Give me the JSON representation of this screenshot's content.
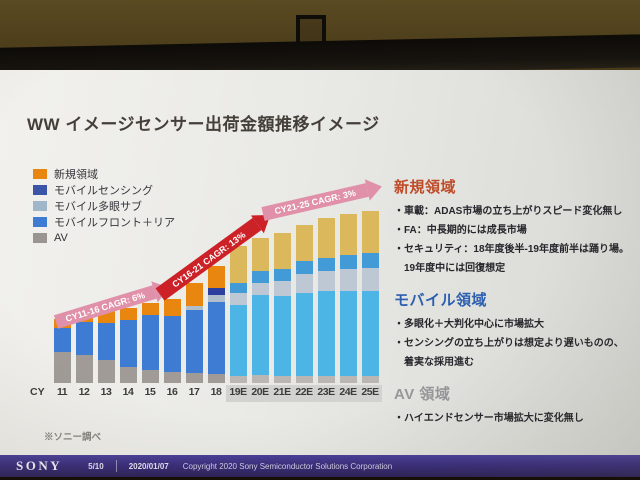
{
  "slide": {
    "title": "WW イメージセンサー出荷金額推移イメージ",
    "footnote": "※ソニー調べ"
  },
  "legend": {
    "items": [
      {
        "label": "新規領域",
        "color": "#e8860f"
      },
      {
        "label": "モバイルセンシング",
        "color": "#3b55a8"
      },
      {
        "label": "モバイル多眼サブ",
        "color": "#9fb7c9"
      },
      {
        "label": "モバイルフロント＋リア",
        "color": "#3e7bd2"
      },
      {
        "label": "AV",
        "color": "#9b9591"
      }
    ]
  },
  "chart_data": {
    "type": "bar",
    "subtype": "stacked",
    "title": "WW イメージセンサー出荷金額推移イメージ",
    "axis_prefix": "CY",
    "categories": [
      "11",
      "12",
      "13",
      "14",
      "15",
      "16",
      "17",
      "18",
      "19E",
      "20E",
      "21E",
      "22E",
      "23E",
      "24E",
      "25E"
    ],
    "estimate_categories": [
      "19E",
      "20E",
      "21E",
      "22E",
      "23E",
      "24E",
      "25E"
    ],
    "value_note": "relative illustrative units read from bar heights; no numeric y-axis shown",
    "series": [
      {
        "key": "av",
        "name": "AV",
        "values": [
          31,
          28,
          23,
          16,
          13,
          11,
          10,
          9,
          7,
          8,
          7,
          7,
          7,
          7,
          7
        ]
      },
      {
        "key": "front_rear",
        "name": "モバイルフロント＋リア",
        "values": [
          24,
          33,
          37,
          47,
          55,
          56,
          63,
          72,
          71,
          80,
          80,
          83,
          85,
          85,
          85
        ]
      },
      {
        "key": "sub",
        "name": "モバイル多眼サブ",
        "values": [
          0,
          0,
          0,
          0,
          0,
          0,
          4,
          7,
          12,
          12,
          15,
          19,
          20,
          22,
          23
        ]
      },
      {
        "key": "sensing",
        "name": "モバイルセンシング",
        "values": [
          0,
          0,
          0,
          0,
          0,
          0,
          0,
          7,
          10,
          12,
          12,
          13,
          13,
          14,
          15
        ]
      },
      {
        "key": "new",
        "name": "新規領域",
        "values": [
          9,
          12,
          13,
          12,
          12,
          17,
          23,
          22,
          37,
          33,
          36,
          36,
          40,
          41,
          42
        ]
      }
    ],
    "palette": {
      "actual": {
        "av": "#a19b97",
        "front_rear": "#3e7bd2",
        "sub": "#b0bdcb",
        "sensing": "#2d3f9e",
        "new": "#e8860f"
      },
      "estimate": {
        "av": "#bab6b3",
        "front_rear": "#4db4e6",
        "sub": "#bec7d4",
        "sensing": "#429bd7",
        "new": "#dcb85c"
      }
    },
    "annotations": [
      {
        "label": "CY11-16 CAGR: 6%",
        "color": "#e091a9"
      },
      {
        "label": "CY16-21 CAGR: 13%",
        "color": "#cb2127"
      },
      {
        "label": "CY21-25 CAGR: 3%",
        "color": "#e091a9"
      }
    ],
    "legend_position": "top-left",
    "grid": false
  },
  "right_panel": {
    "sections": [
      {
        "heading": "新規領域",
        "heading_color": "#bf4b28",
        "lines": [
          "・車載：ADAS市場の立ち上がりスピード変化無し",
          "・FA：中長期的には成長市場",
          "・セキュリティ：18年度後半-19年度前半は踊り場。",
          "　19年度中には回復想定"
        ]
      },
      {
        "heading": "モバイル領域",
        "heading_color": "#2d5fb0",
        "lines": [
          "・多眼化＋大判化中心に市場拡大",
          "・センシングの立ち上がりは想定より遅いものの、",
          "　着実な採用進む"
        ]
      },
      {
        "heading": "AV 領域",
        "heading_color": "#97979b",
        "lines": [
          "・ハイエンドセンサー市場拡大に変化無し"
        ]
      }
    ]
  },
  "footer": {
    "brand": "SONY",
    "page": "5/10",
    "date": "2020/01/07",
    "copyright": "Copyright 2020 Sony Semiconductor Solutions Corporation"
  }
}
